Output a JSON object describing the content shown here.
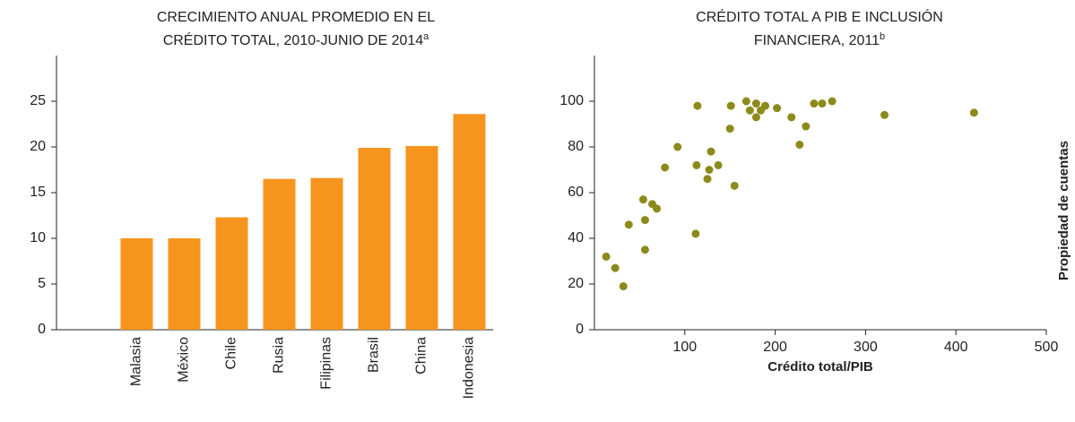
{
  "chart_data": [
    {
      "type": "bar",
      "title": [
        "CRECIMIENTO ANUAL PROMEDIO EN EL",
        "CRÉDITO TOTAL, 2010-JUNIO DE 2014"
      ],
      "title_superscript": "a",
      "categories": [
        "Malasia",
        "México",
        "Chile",
        "Rusia",
        "Filipinas",
        "Brasil",
        "China",
        "Indonesia"
      ],
      "values": [
        10,
        10,
        12.3,
        16.5,
        16.6,
        19.9,
        20.1,
        23.6
      ],
      "color": "#f7941d",
      "ylim": [
        0,
        30
      ],
      "yticks": [
        0,
        5,
        10,
        15,
        20,
        25
      ],
      "grid": false
    },
    {
      "type": "scatter",
      "title": [
        "CRÉDITO TOTAL A PIB E INCLUSIÓN",
        "FINANCIERA, 2011"
      ],
      "title_superscript": "b",
      "xlabel": "Crédito total/PIB",
      "ylabel": "Propiedad de cuentas",
      "x": [
        13,
        23,
        32,
        38,
        54,
        56,
        56,
        64,
        69,
        78,
        92,
        114,
        113,
        112,
        125,
        127,
        129,
        137,
        150,
        151,
        155,
        168,
        172,
        179,
        179,
        184,
        189,
        202,
        218,
        227,
        234,
        243,
        252,
        263,
        321,
        420
      ],
      "values": [
        32,
        27,
        19,
        46,
        57,
        48,
        35,
        55,
        53,
        71,
        80,
        98,
        72,
        42,
        66,
        70,
        78,
        72,
        88,
        98,
        63,
        100,
        96,
        99,
        93,
        96,
        98,
        97,
        93,
        81,
        89,
        99,
        99,
        100,
        94,
        95
      ],
      "color": "#8c8a1a",
      "xlim": [
        0,
        500
      ],
      "xticks": [
        100,
        200,
        300,
        400,
        500
      ],
      "ylim": [
        0,
        120
      ],
      "yticks": [
        0,
        20,
        40,
        60,
        80,
        100
      ],
      "grid": false
    }
  ]
}
